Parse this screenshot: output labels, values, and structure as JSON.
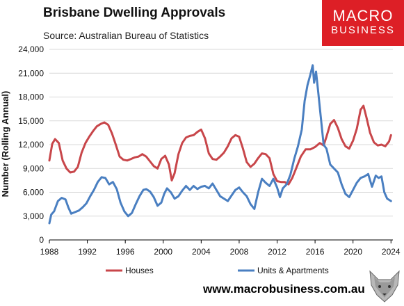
{
  "header": {
    "title": "Brisbane Dwelling Approvals",
    "source": "Source: Australian Bureau of Statistics",
    "website": "www.macrobusiness.com.au"
  },
  "logo": {
    "line1": "MACRO",
    "line2": "BUSINESS",
    "color": "#dd1f26"
  },
  "colors": {
    "houses": "#c8464a",
    "units": "#4a7fc1",
    "grid": "#d9d9d9",
    "axis": "#000000"
  },
  "chart_data": {
    "type": "line",
    "title": "Brisbane Dwelling Approvals",
    "ylabel": "Number (Rolling Annual)",
    "xlabel": "",
    "xlim": [
      1988,
      2024.2
    ],
    "ylim": [
      0,
      24000
    ],
    "x_ticks": [
      1988,
      1992,
      1996,
      2000,
      2004,
      2008,
      2012,
      2016,
      2020,
      2024
    ],
    "y_ticks": [
      0,
      3000,
      6000,
      9000,
      12000,
      15000,
      18000,
      21000,
      24000
    ],
    "y_tick_labels": [
      "0",
      "3,000",
      "6,000",
      "9,000",
      "12,000",
      "15,000",
      "18,000",
      "21,000",
      "24,000"
    ],
    "grid": "horizontal",
    "legend_position": "bottom",
    "series": [
      {
        "name": "Houses",
        "color": "#c8464a",
        "points": [
          [
            1988.0,
            10000
          ],
          [
            1988.3,
            12100
          ],
          [
            1988.6,
            12700
          ],
          [
            1989.0,
            12200
          ],
          [
            1989.4,
            10000
          ],
          [
            1989.8,
            9000
          ],
          [
            1990.2,
            8500
          ],
          [
            1990.6,
            8600
          ],
          [
            1991.0,
            9200
          ],
          [
            1991.4,
            11000
          ],
          [
            1991.8,
            12200
          ],
          [
            1992.2,
            13000
          ],
          [
            1992.6,
            13700
          ],
          [
            1993.0,
            14300
          ],
          [
            1993.4,
            14600
          ],
          [
            1993.8,
            14800
          ],
          [
            1994.2,
            14500
          ],
          [
            1994.6,
            13400
          ],
          [
            1995.0,
            12000
          ],
          [
            1995.4,
            10500
          ],
          [
            1995.8,
            10100
          ],
          [
            1996.2,
            10000
          ],
          [
            1996.6,
            10200
          ],
          [
            1997.0,
            10400
          ],
          [
            1997.4,
            10500
          ],
          [
            1997.8,
            10800
          ],
          [
            1998.2,
            10500
          ],
          [
            1998.6,
            9900
          ],
          [
            1999.0,
            9300
          ],
          [
            1999.4,
            9000
          ],
          [
            1999.8,
            10200
          ],
          [
            2000.2,
            10600
          ],
          [
            2000.6,
            9500
          ],
          [
            2000.9,
            7500
          ],
          [
            2001.2,
            8400
          ],
          [
            2001.6,
            10800
          ],
          [
            2002.0,
            12200
          ],
          [
            2002.4,
            12900
          ],
          [
            2002.8,
            13100
          ],
          [
            2003.2,
            13200
          ],
          [
            2003.6,
            13600
          ],
          [
            2004.0,
            13900
          ],
          [
            2004.4,
            12800
          ],
          [
            2004.8,
            10900
          ],
          [
            2005.2,
            10200
          ],
          [
            2005.6,
            10100
          ],
          [
            2006.0,
            10500
          ],
          [
            2006.4,
            11000
          ],
          [
            2006.8,
            11800
          ],
          [
            2007.2,
            12800
          ],
          [
            2007.6,
            13200
          ],
          [
            2008.0,
            13000
          ],
          [
            2008.4,
            11500
          ],
          [
            2008.8,
            9800
          ],
          [
            2009.2,
            9200
          ],
          [
            2009.6,
            9600
          ],
          [
            2010.0,
            10300
          ],
          [
            2010.4,
            10900
          ],
          [
            2010.8,
            10800
          ],
          [
            2011.2,
            10300
          ],
          [
            2011.6,
            8300
          ],
          [
            2012.0,
            7400
          ],
          [
            2012.4,
            7300
          ],
          [
            2012.8,
            7300
          ],
          [
            2013.2,
            7000
          ],
          [
            2013.6,
            7800
          ],
          [
            2014.0,
            9000
          ],
          [
            2014.5,
            10500
          ],
          [
            2015.0,
            11400
          ],
          [
            2015.5,
            11400
          ],
          [
            2016.0,
            11700
          ],
          [
            2016.5,
            12200
          ],
          [
            2016.9,
            11900
          ],
          [
            2017.2,
            13000
          ],
          [
            2017.6,
            14600
          ],
          [
            2018.0,
            15100
          ],
          [
            2018.4,
            14100
          ],
          [
            2018.8,
            12700
          ],
          [
            2019.2,
            11800
          ],
          [
            2019.6,
            11500
          ],
          [
            2020.0,
            12500
          ],
          [
            2020.4,
            14000
          ],
          [
            2020.8,
            16400
          ],
          [
            2021.1,
            16900
          ],
          [
            2021.4,
            15500
          ],
          [
            2021.8,
            13500
          ],
          [
            2022.2,
            12300
          ],
          [
            2022.6,
            11900
          ],
          [
            2023.0,
            12000
          ],
          [
            2023.4,
            11800
          ],
          [
            2023.8,
            12400
          ],
          [
            2024.0,
            13200
          ]
        ]
      },
      {
        "name": "Units & Apartments",
        "color": "#4a7fc1",
        "points": [
          [
            1988.0,
            2100
          ],
          [
            1988.2,
            3200
          ],
          [
            1988.5,
            3600
          ],
          [
            1988.9,
            4900
          ],
          [
            1989.3,
            5300
          ],
          [
            1989.7,
            5100
          ],
          [
            1990.0,
            4100
          ],
          [
            1990.3,
            3300
          ],
          [
            1990.7,
            3500
          ],
          [
            1991.1,
            3700
          ],
          [
            1991.5,
            4100
          ],
          [
            1991.9,
            4600
          ],
          [
            1992.3,
            5500
          ],
          [
            1992.7,
            6300
          ],
          [
            1993.1,
            7300
          ],
          [
            1993.5,
            7900
          ],
          [
            1993.9,
            7800
          ],
          [
            1994.3,
            7000
          ],
          [
            1994.7,
            7300
          ],
          [
            1995.1,
            6400
          ],
          [
            1995.5,
            4700
          ],
          [
            1995.9,
            3600
          ],
          [
            1996.3,
            3000
          ],
          [
            1996.7,
            3400
          ],
          [
            1997.1,
            4500
          ],
          [
            1997.5,
            5500
          ],
          [
            1997.9,
            6300
          ],
          [
            1998.2,
            6400
          ],
          [
            1998.6,
            6100
          ],
          [
            1999.0,
            5400
          ],
          [
            1999.4,
            4300
          ],
          [
            1999.8,
            4700
          ],
          [
            2000.1,
            5800
          ],
          [
            2000.4,
            6500
          ],
          [
            2000.8,
            6000
          ],
          [
            2001.2,
            5200
          ],
          [
            2001.6,
            5500
          ],
          [
            2002.0,
            6200
          ],
          [
            2002.4,
            6800
          ],
          [
            2002.8,
            6300
          ],
          [
            2003.2,
            6800
          ],
          [
            2003.6,
            6400
          ],
          [
            2004.0,
            6700
          ],
          [
            2004.4,
            6800
          ],
          [
            2004.8,
            6500
          ],
          [
            2005.2,
            7100
          ],
          [
            2005.6,
            6300
          ],
          [
            2006.0,
            5500
          ],
          [
            2006.4,
            5200
          ],
          [
            2006.8,
            4900
          ],
          [
            2007.2,
            5600
          ],
          [
            2007.6,
            6300
          ],
          [
            2008.0,
            6600
          ],
          [
            2008.4,
            6000
          ],
          [
            2008.8,
            5500
          ],
          [
            2009.2,
            4500
          ],
          [
            2009.6,
            3900
          ],
          [
            2010.0,
            6000
          ],
          [
            2010.4,
            7700
          ],
          [
            2010.8,
            7200
          ],
          [
            2011.2,
            6800
          ],
          [
            2011.6,
            7700
          ],
          [
            2012.0,
            6600
          ],
          [
            2012.3,
            5400
          ],
          [
            2012.6,
            6500
          ],
          [
            2013.0,
            7000
          ],
          [
            2013.4,
            8200
          ],
          [
            2013.8,
            10200
          ],
          [
            2014.2,
            11800
          ],
          [
            2014.6,
            13900
          ],
          [
            2014.9,
            17500
          ],
          [
            2015.2,
            19500
          ],
          [
            2015.5,
            20800
          ],
          [
            2015.75,
            22000
          ],
          [
            2015.9,
            19800
          ],
          [
            2016.1,
            21200
          ],
          [
            2016.3,
            19000
          ],
          [
            2016.6,
            15500
          ],
          [
            2016.9,
            12000
          ],
          [
            2017.2,
            11500
          ],
          [
            2017.6,
            9500
          ],
          [
            2018.0,
            9000
          ],
          [
            2018.4,
            8500
          ],
          [
            2018.8,
            7000
          ],
          [
            2019.2,
            5800
          ],
          [
            2019.6,
            5400
          ],
          [
            2020.0,
            6300
          ],
          [
            2020.4,
            7200
          ],
          [
            2020.8,
            7800
          ],
          [
            2021.2,
            8000
          ],
          [
            2021.6,
            8300
          ],
          [
            2022.0,
            6700
          ],
          [
            2022.4,
            8100
          ],
          [
            2022.7,
            7800
          ],
          [
            2023.0,
            8000
          ],
          [
            2023.3,
            6000
          ],
          [
            2023.6,
            5200
          ],
          [
            2024.0,
            4900
          ]
        ]
      }
    ]
  }
}
